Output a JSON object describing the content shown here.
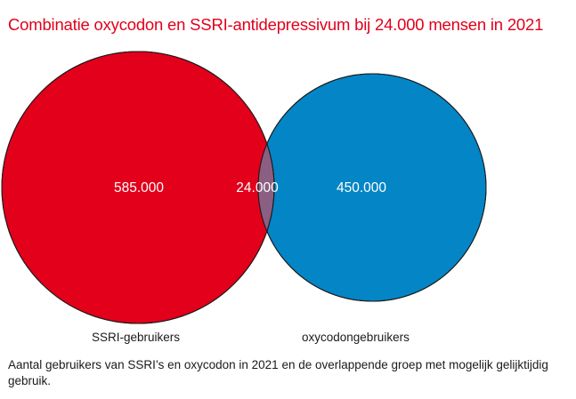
{
  "title": "Combinatie oxycodon en SSRI-antidepressivum bij 24.000 mensen in 2021",
  "venn": {
    "set_a": {
      "label": "SSRI-gebruikers",
      "value_text": "585.000",
      "value": 585000,
      "color": "#e2001a"
    },
    "set_b": {
      "label": "oxycodongebruikers",
      "value_text": "450.000",
      "value": 450000,
      "color": "#0485c6"
    },
    "overlap": {
      "value_text": "24.000",
      "value": 24000,
      "color": "#8a5f82"
    }
  },
  "caption": "Aantal gebruikers van SSRI’s en oxycodon in 2021 en de overlappende groep met mogelijk gelijk­tijdig gebruik."
}
